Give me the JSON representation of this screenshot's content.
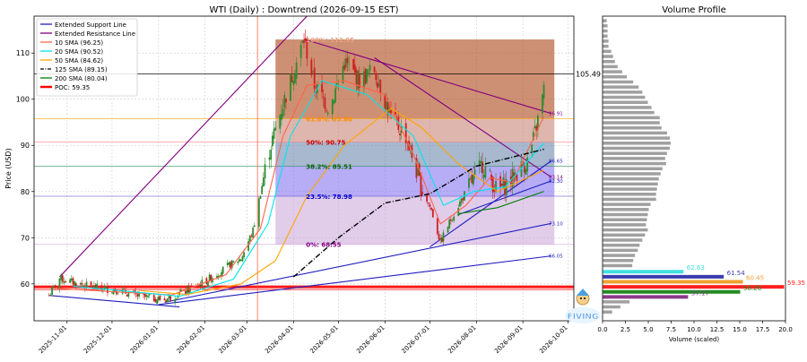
{
  "chart_data": [
    {
      "type": "candlestick",
      "title": "WTI (Daily) : Downtrend (2026-09-15 EST)",
      "ylabel": "Price (USD)",
      "xlabel": "",
      "ylim": [
        52,
        118
      ],
      "xlim": [
        "2025-10-10",
        "2026-10-05"
      ],
      "x_ticks": [
        "2025-11-01",
        "2025-12-01",
        "2026-01-01",
        "2026-02-01",
        "2026-03-01",
        "2026-04-01",
        "2026-05-01",
        "2026-06-01",
        "2026-07-01",
        "2026-08-01",
        "2026-09-01",
        "2026-10-01"
      ],
      "y_ticks": [
        60,
        70,
        80,
        90,
        100,
        110
      ],
      "grid": true,
      "legend_position": "top-left",
      "legend": [
        {
          "label": "Extended Support Line",
          "color": "#1f1fbf",
          "style": "solid"
        },
        {
          "label": "Extended Resistance Line",
          "color": "#800080",
          "style": "solid"
        },
        {
          "label": "10 SMA (96.25)",
          "color": "#ff6347",
          "style": "solid"
        },
        {
          "label": "20 SMA (90.52)",
          "color": "#00e5ee",
          "style": "solid"
        },
        {
          "label": "50 SMA (84.62)",
          "color": "#ffa500",
          "style": "solid"
        },
        {
          "label": "125 SMA (89.15)",
          "color": "#000000",
          "style": "dashdot"
        },
        {
          "label": "200 SMA (80.04)",
          "color": "#008000",
          "style": "solid"
        },
        {
          "label": "POC: 59.35",
          "color": "#ff0000",
          "style": "thick"
        }
      ],
      "price_anchors": [
        [
          "2025-10-20",
          57.5
        ],
        [
          "2025-10-27",
          61.2
        ],
        [
          "2025-11-05",
          60.3
        ],
        [
          "2025-11-20",
          59.2
        ],
        [
          "2025-12-05",
          58.6
        ],
        [
          "2025-12-20",
          57.2
        ],
        [
          "2026-01-05",
          56.6
        ],
        [
          "2026-01-20",
          58.5
        ],
        [
          "2026-02-01",
          60.5
        ],
        [
          "2026-02-15",
          63.5
        ],
        [
          "2026-02-25",
          65.5
        ],
        [
          "2026-03-05",
          71.5
        ],
        [
          "2026-03-15",
          88
        ],
        [
          "2026-03-25",
          99
        ],
        [
          "2026-04-08",
          113
        ],
        [
          "2026-04-15",
          103
        ],
        [
          "2026-04-25",
          98
        ],
        [
          "2026-05-05",
          108
        ],
        [
          "2026-05-15",
          104
        ],
        [
          "2026-05-25",
          106.5
        ],
        [
          "2026-06-05",
          96
        ],
        [
          "2026-06-15",
          92
        ],
        [
          "2026-06-25",
          81
        ],
        [
          "2026-07-02",
          76
        ],
        [
          "2026-07-08",
          69
        ],
        [
          "2026-07-15",
          74
        ],
        [
          "2026-07-25",
          80
        ],
        [
          "2026-08-05",
          86
        ],
        [
          "2026-08-15",
          80
        ],
        [
          "2026-08-25",
          83
        ],
        [
          "2026-09-05",
          87
        ],
        [
          "2026-09-12",
          97
        ],
        [
          "2026-09-15",
          102
        ]
      ],
      "sma_lines": [
        {
          "name": "10 SMA (96.25)",
          "color": "#ff6347",
          "points": [
            [
              "2025-10-25",
              59
            ],
            [
              "2026-01-10",
              57.6
            ],
            [
              "2026-02-15",
              62
            ],
            [
              "2026-03-10",
              72
            ],
            [
              "2026-03-25",
              92
            ],
            [
              "2026-04-10",
              103
            ],
            [
              "2026-05-05",
              104
            ],
            [
              "2026-06-01",
              101
            ],
            [
              "2026-06-20",
              88
            ],
            [
              "2026-07-08",
              73
            ],
            [
              "2026-07-25",
              77
            ],
            [
              "2026-08-10",
              83
            ],
            [
              "2026-08-25",
              82
            ],
            [
              "2026-09-15",
              96.25
            ]
          ]
        },
        {
          "name": "20 SMA (90.52)",
          "color": "#00e5ee",
          "points": [
            [
              "2025-11-05",
              59.5
            ],
            [
              "2026-01-15",
              57.3
            ],
            [
              "2026-02-20",
              61
            ],
            [
              "2026-03-15",
              73
            ],
            [
              "2026-03-30",
              92
            ],
            [
              "2026-04-20",
              104
            ],
            [
              "2026-05-20",
              101
            ],
            [
              "2026-06-20",
              92
            ],
            [
              "2026-07-10",
              77
            ],
            [
              "2026-07-30",
              80
            ],
            [
              "2026-08-20",
              81
            ],
            [
              "2026-09-15",
              90.52
            ]
          ]
        },
        {
          "name": "50 SMA (84.62)",
          "color": "#ffa500",
          "points": [
            [
              "2025-12-20",
              58.5
            ],
            [
              "2026-01-20",
              57.7
            ],
            [
              "2026-02-25",
              60
            ],
            [
              "2026-03-20",
              65
            ],
            [
              "2026-04-10",
              79
            ],
            [
              "2026-05-05",
              90
            ],
            [
              "2026-06-05",
              98
            ],
            [
              "2026-06-25",
              94
            ],
            [
              "2026-07-20",
              86
            ],
            [
              "2026-08-15",
              80
            ],
            [
              "2026-09-15",
              84.62
            ]
          ]
        },
        {
          "name": "125 SMA (89.15)",
          "color": "#000000",
          "points": [
            [
              "2026-04-01",
              61.5
            ],
            [
              "2026-05-01",
              70
            ],
            [
              "2026-06-01",
              77.5
            ],
            [
              "2026-07-01",
              79.5
            ],
            [
              "2026-08-01",
              85.5
            ],
            [
              "2026-09-15",
              89.15
            ]
          ],
          "dash": "6,2,1,2"
        },
        {
          "name": "200 SMA (80.04)",
          "color": "#008000",
          "points": [
            [
              "2026-07-20",
              75.2
            ],
            [
              "2026-08-15",
              76.5
            ],
            [
              "2026-09-15",
              80.04
            ]
          ]
        }
      ],
      "trend_lines": [
        {
          "color": "#800080",
          "from": [
            "2025-10-27",
            61.5
          ],
          "to": [
            "2026-04-10",
            118
          ]
        },
        {
          "color": "#800080",
          "from": [
            "2026-04-08",
            113
          ],
          "to": [
            "2026-09-20",
            96.9
          ]
        },
        {
          "color": "#800080",
          "from": [
            "2026-05-25",
            109
          ],
          "to": [
            "2026-09-20",
            83.1
          ]
        },
        {
          "color": "#1f1fbf",
          "from": [
            "2025-10-20",
            57.5
          ],
          "to": [
            "2026-01-15",
            55
          ]
        },
        {
          "color": "#1f1fbf",
          "from": [
            "2026-01-01",
            55.5
          ],
          "to": [
            "2026-09-20",
            66.05
          ]
        },
        {
          "color": "#1f1fbf",
          "from": [
            "2026-01-05",
            56
          ],
          "to": [
            "2026-09-20",
            73.1
          ]
        },
        {
          "color": "#1f1fbf",
          "from": [
            "2026-07-01",
            68
          ],
          "to": [
            "2026-09-20",
            86.65
          ]
        },
        {
          "color": "#1f1fbf",
          "from": [
            "2026-07-20",
            75
          ],
          "to": [
            "2026-09-20",
            82.3
          ]
        }
      ],
      "fib_zones": [
        {
          "from": 112.95,
          "to": 95.8,
          "color": "#b3542a",
          "opacity": 0.65
        },
        {
          "from": 95.8,
          "to": 90.75,
          "color": "#c27a6b",
          "opacity": 0.55
        },
        {
          "from": 90.75,
          "to": 85.51,
          "color": "#5f7ea8",
          "opacity": 0.55
        },
        {
          "from": 85.51,
          "to": 78.98,
          "color": "#7b68ee",
          "opacity": 0.55
        },
        {
          "from": 78.98,
          "to": 68.55,
          "color": "#c8a2d8",
          "opacity": 0.55
        }
      ],
      "fib_box_x": [
        "2026-03-20",
        "2026-09-22"
      ],
      "fib_labels": [
        {
          "text": "100%: 112.95",
          "value": 112.95,
          "color": "#e8a080"
        },
        {
          "text": "61.8%: 95.80",
          "value": 95.8,
          "color": "#ff8c00"
        },
        {
          "text": "50%: 90.75",
          "value": 90.75,
          "color": "#cc0000"
        },
        {
          "text": "38.2%: 85.51",
          "value": 85.51,
          "color": "#006400"
        },
        {
          "text": "23.5%: 78.98",
          "value": 78.98,
          "color": "#0000cd"
        },
        {
          "text": "0%: 68.55",
          "value": 68.55,
          "color": "#800080"
        }
      ],
      "horizontal_lines": [
        {
          "value": 105.49,
          "color": "#000000",
          "label": "105.49"
        },
        {
          "value": 59.35,
          "color": "#ff0000",
          "label": "59.35"
        },
        {
          "value": 95.8,
          "color": "#ffa500",
          "label": ""
        },
        {
          "value": 90.75,
          "color": "#ff8080",
          "label": ""
        },
        {
          "value": 85.51,
          "color": "#2e8b57",
          "label": ""
        },
        {
          "value": 78.98,
          "color": "#6a5acd",
          "label": ""
        },
        {
          "value": 68.55,
          "color": "#dda0dd",
          "label": ""
        }
      ],
      "right_value_labels": [
        {
          "text": "96.91",
          "value": 96.91,
          "color": "#800080"
        },
        {
          "text": "86.65",
          "value": 86.65,
          "color": "#1f1fbf"
        },
        {
          "text": "83.14",
          "value": 83.14,
          "color": "#800080"
        },
        {
          "text": "82.30",
          "value": 82.3,
          "color": "#1f1fbf"
        },
        {
          "text": "73.10",
          "value": 73.1,
          "color": "#1f1fbf"
        },
        {
          "text": "66.05",
          "value": 66.05,
          "color": "#1f1fbf"
        }
      ],
      "vertical_marker": {
        "date": "2026-03-08",
        "color": "#ff6347"
      }
    },
    {
      "type": "horizontal_bar",
      "title": "Volume Profile",
      "xlabel": "Volume (scaled)",
      "xlim": [
        0,
        20
      ],
      "x_ticks": [
        "0.0",
        "2.5",
        "5.0",
        "7.5",
        "10.0",
        "12.5",
        "15.0",
        "17.5",
        "20.0"
      ],
      "ylim": [
        52,
        118
      ],
      "bar_values": [
        0.4,
        0.5,
        0.5,
        0.5,
        0.6,
        0.6,
        0.9,
        1.1,
        1.3,
        1.6,
        2.1,
        2.6,
        3.3,
        3.9,
        4.3,
        4.6,
        4.9,
        5.3,
        5.6,
        6.2,
        6.2,
        6.4,
        7.0,
        7.3,
        7.4,
        7.3,
        7.0,
        6.8,
        6.9,
        6.5,
        6.3,
        6.1,
        6.0,
        5.9,
        5.8,
        5.8,
        5.2,
        5.0,
        4.9,
        4.8,
        4.7,
        4.9,
        4.6,
        4.3,
        4.0,
        3.8,
        3.5,
        3.3,
        3.2,
        3.0,
        2.6,
        2.4,
        2.0,
        1.8,
        1.5,
        1.2,
        1.0,
        0.8
      ],
      "bar_range": [
        117,
        54
      ],
      "highlighted_bars": [
        {
          "label": "62.63",
          "value": 62.63,
          "volume": 8.8,
          "color": "#40e0e0"
        },
        {
          "label": "61.54",
          "value": 61.54,
          "volume": 13.2,
          "color": "#3b3bb0"
        },
        {
          "label": "60.45",
          "value": 60.45,
          "volume": 15.3,
          "color": "#f0a030"
        },
        {
          "label": "59.35",
          "value": 59.35,
          "volume": 19.8,
          "color": "#ff2020"
        },
        {
          "label": "58.26",
          "value": 58.26,
          "volume": 15.0,
          "color": "#228b22"
        },
        {
          "label": "57.17",
          "value": 57.17,
          "volume": 9.3,
          "color": "#8b3a8b"
        }
      ],
      "low_bars": [
        {
          "value": 56.1,
          "volume": 2.9
        },
        {
          "value": 55.0,
          "volume": 1.9
        },
        {
          "value": 53.9,
          "volume": 1.0
        }
      ]
    }
  ],
  "logo": {
    "text": "FIVING"
  }
}
